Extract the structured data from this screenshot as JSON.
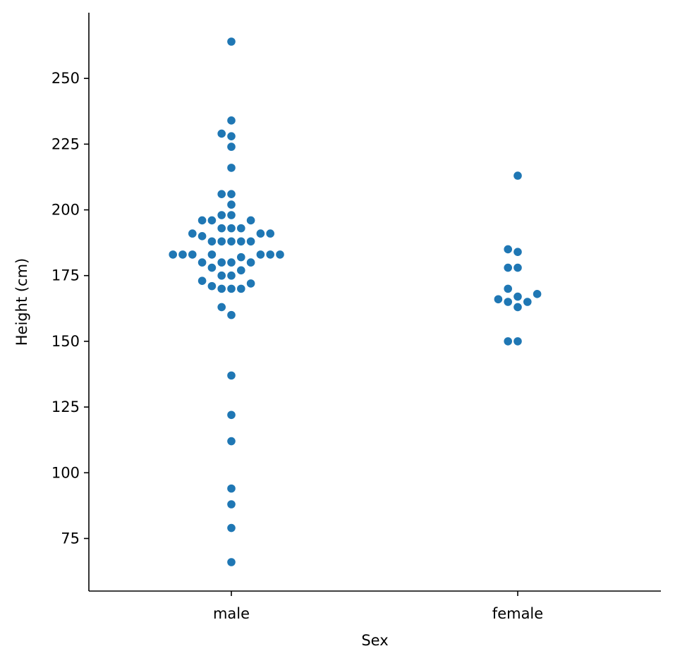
{
  "chart_data": {
    "type": "scatter",
    "subtype": "swarm",
    "xlabel": "Sex",
    "ylabel": "Height (cm)",
    "categories": [
      "male",
      "female"
    ],
    "ylim": [
      55,
      275
    ],
    "yticks": [
      75,
      100,
      125,
      150,
      175,
      200,
      225,
      250
    ],
    "grid": false,
    "color": "#1f77b4",
    "series": [
      {
        "category": "male",
        "values": [
          264,
          234,
          229,
          228,
          224,
          216,
          206,
          206,
          202,
          198,
          198,
          196,
          196,
          196,
          193,
          193,
          193,
          191,
          191,
          191,
          190,
          188,
          188,
          188,
          188,
          188,
          183,
          183,
          183,
          183,
          183,
          183,
          183,
          182,
          180,
          180,
          180,
          180,
          178,
          177,
          175,
          175,
          173,
          172,
          171,
          170,
          170,
          170,
          163,
          160,
          137,
          122,
          112,
          94,
          88,
          79,
          66
        ]
      },
      {
        "category": "female",
        "values": [
          213,
          185,
          184,
          178,
          178,
          170,
          168,
          167,
          166,
          165,
          165,
          163,
          150,
          150
        ]
      }
    ]
  }
}
